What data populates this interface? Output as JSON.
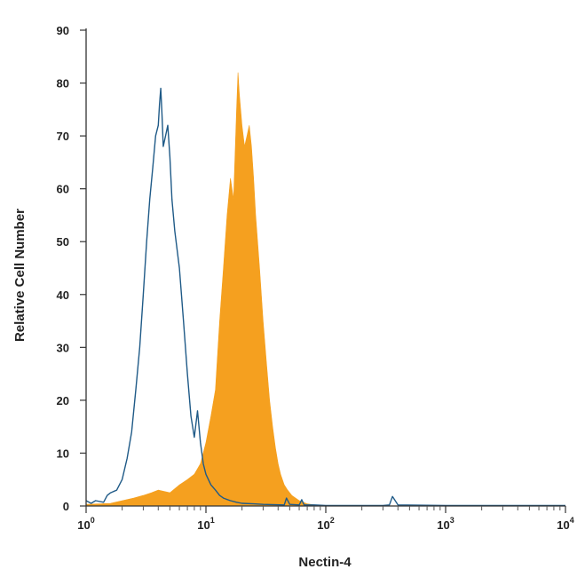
{
  "chart_data": {
    "type": "area",
    "title": "",
    "xlabel": "Nectin-4",
    "ylabel": "Relative Cell Number",
    "xscale": "log",
    "xlim": [
      1,
      10000
    ],
    "ylim": [
      0,
      90
    ],
    "xticks": [
      {
        "value": 1,
        "base": "10",
        "exp": "0"
      },
      {
        "value": 10,
        "base": "10",
        "exp": "1"
      },
      {
        "value": 100,
        "base": "10",
        "exp": "2"
      },
      {
        "value": 1000,
        "base": "10",
        "exp": "3"
      },
      {
        "value": 10000,
        "base": "10",
        "exp": "4"
      }
    ],
    "yticks": [
      0,
      10,
      20,
      30,
      40,
      50,
      60,
      70,
      80,
      90
    ],
    "grid": false,
    "legend": "none",
    "series": [
      {
        "style": "filled",
        "color": "#f5a01f",
        "x": [
          1,
          1.3,
          1.6,
          2.0,
          2.5,
          3.0,
          3.5,
          4.0,
          5.0,
          6.0,
          7.0,
          8.0,
          9.0,
          10.0,
          11.0,
          12.0,
          13.0,
          14.0,
          15.0,
          16.0,
          17.0,
          18.0,
          18.5,
          19.0,
          20.0,
          21.0,
          22.0,
          23.0,
          24.0,
          25.0,
          26.0,
          27.0,
          28.0,
          30.0,
          32.0,
          34.0,
          36.0,
          38.0,
          40.0,
          42.0,
          45.0,
          48.0,
          52.0,
          56.0,
          60.0,
          65.0,
          70.0,
          80.0,
          100,
          1000,
          10000
        ],
        "y": [
          0.3,
          0.4,
          0.5,
          1,
          1.5,
          2,
          2.5,
          3,
          2.5,
          4,
          5,
          6,
          8,
          12,
          17,
          22,
          35,
          45,
          55,
          62,
          58,
          75,
          82,
          78,
          72,
          68,
          70,
          72,
          68,
          62,
          55,
          50,
          45,
          35,
          27,
          20,
          15,
          11,
          8,
          6,
          4,
          3,
          2,
          1.5,
          1,
          0.7,
          0.4,
          0.2,
          0.1,
          0,
          0
        ]
      },
      {
        "style": "outline",
        "color": "#1f5a87",
        "x": [
          1,
          1.1,
          1.2,
          1.4,
          1.5,
          1.6,
          1.8,
          2.0,
          2.2,
          2.4,
          2.6,
          2.8,
          3.0,
          3.2,
          3.4,
          3.6,
          3.8,
          4.0,
          4.1,
          4.2,
          4.3,
          4.4,
          4.6,
          4.8,
          5.0,
          5.2,
          5.5,
          6.0,
          6.5,
          7.0,
          7.5,
          8.0,
          8.5,
          9.0,
          9.5,
          10.0,
          11.0,
          12.0,
          13.0,
          14.0,
          16.0,
          18.0,
          20.0,
          25.0,
          30.0,
          45.0,
          47.0,
          50.0,
          60.0,
          63.0,
          66.0,
          80.0,
          100,
          300,
          340,
          360,
          400,
          1000,
          10000
        ],
        "y": [
          1,
          0.5,
          1,
          0.7,
          2,
          2.5,
          3,
          5,
          9,
          14,
          22,
          30,
          40,
          50,
          58,
          64,
          70,
          72,
          76,
          79,
          74,
          68,
          70,
          72,
          66,
          58,
          52,
          45,
          35,
          25,
          17,
          13,
          18,
          12,
          8,
          6,
          4,
          3,
          2,
          1.5,
          1,
          0.7,
          0.5,
          0.4,
          0.3,
          0.2,
          1.5,
          0.3,
          0.2,
          1.2,
          0.2,
          0.2,
          0.1,
          0.1,
          0.2,
          1.8,
          0.2,
          0.1,
          0.1
        ]
      }
    ]
  }
}
